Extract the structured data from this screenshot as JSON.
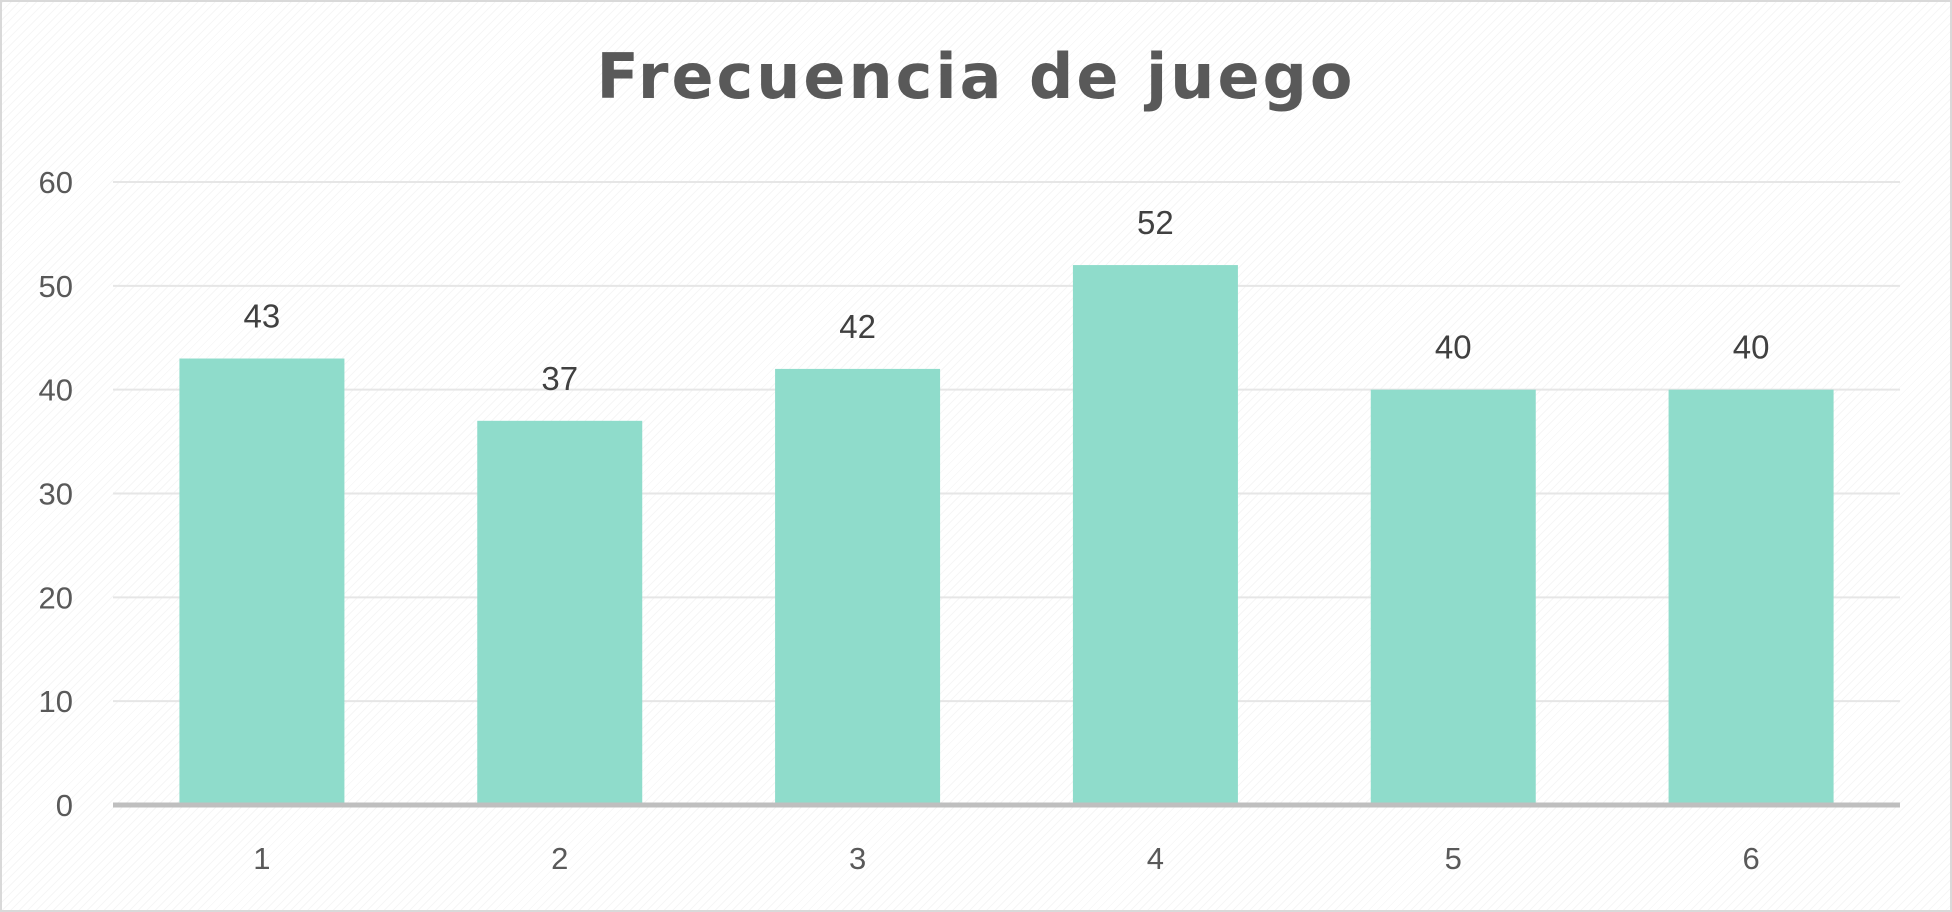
{
  "chart_data": {
    "type": "bar",
    "title": "Frecuencia de juego",
    "xlabel": "",
    "ylabel": "",
    "categories": [
      "1",
      "2",
      "3",
      "4",
      "5",
      "6"
    ],
    "values": [
      43,
      37,
      42,
      52,
      40,
      40
    ],
    "data_labels": [
      "43",
      "37",
      "42",
      "52",
      "40",
      "40"
    ],
    "ylim": [
      0,
      60
    ],
    "yticks": [
      "0",
      "10",
      "20",
      "30",
      "40",
      "50",
      "60"
    ],
    "grid": true,
    "legend": "none",
    "colors": {
      "bar": "#8fdccb",
      "grid": "#e6e6e6",
      "axis": "#bfbfbf",
      "text": "#595959",
      "data_label": "#404040"
    }
  }
}
